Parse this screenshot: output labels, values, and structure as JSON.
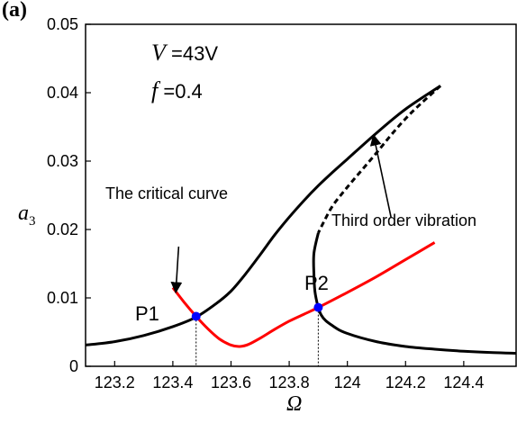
{
  "panel_label": "(a)",
  "params": {
    "v_symbol": "V",
    "v_value": "=43V",
    "f_symbol": "f",
    "f_value": "=0.4"
  },
  "chart_data": {
    "type": "line",
    "ylabel_base": "a",
    "ylabel_sub": "3",
    "xlabel": "Ω",
    "xlim": [
      123.1,
      124.58
    ],
    "ylim": [
      0,
      0.05
    ],
    "x_ticks": [
      {
        "value": 123.2,
        "label": "123.2"
      },
      {
        "value": 123.4,
        "label": "123.4"
      },
      {
        "value": 123.6,
        "label": "123.6"
      },
      {
        "value": 123.8,
        "label": "123.8"
      },
      {
        "value": 124.0,
        "label": "124"
      },
      {
        "value": 124.2,
        "label": "124.2"
      },
      {
        "value": 124.4,
        "label": "124.4"
      }
    ],
    "y_ticks": [
      {
        "value": 0,
        "label": "0"
      },
      {
        "value": 0.01,
        "label": "0.01"
      },
      {
        "value": 0.02,
        "label": "0.02"
      },
      {
        "value": 0.03,
        "label": "0.03"
      },
      {
        "value": 0.04,
        "label": "0.04"
      },
      {
        "value": 0.05,
        "label": "0.05"
      }
    ],
    "series": [
      {
        "style": "solid",
        "color": "#000000",
        "x": [
          123.1,
          123.2,
          123.3,
          123.4,
          123.48,
          123.55,
          123.6,
          123.65,
          123.7,
          123.75,
          123.8,
          123.85,
          123.9,
          123.95,
          124.0,
          124.1,
          124.2,
          124.32
        ],
        "y": [
          0.0031,
          0.0036,
          0.0045,
          0.0058,
          0.0072,
          0.0092,
          0.011,
          0.0135,
          0.0163,
          0.0192,
          0.0218,
          0.0242,
          0.0264,
          0.0284,
          0.0303,
          0.0341,
          0.0376,
          0.041
        ]
      },
      {
        "style": "dashed",
        "color": "#000000",
        "x": [
          124.32,
          124.25,
          124.2,
          124.15,
          124.1,
          124.05,
          124.0,
          123.95,
          123.92,
          123.9
        ],
        "y": [
          0.041,
          0.0383,
          0.0362,
          0.0338,
          0.0312,
          0.0287,
          0.0262,
          0.0235,
          0.0212,
          0.0195
        ]
      },
      {
        "style": "solid",
        "color": "#000000",
        "x": [
          123.9,
          123.885,
          123.885,
          123.89,
          123.91,
          123.95,
          124.0,
          124.1,
          124.2,
          124.3,
          124.4,
          124.5,
          124.58
        ],
        "y": [
          0.0195,
          0.0165,
          0.0135,
          0.0105,
          0.0075,
          0.0059,
          0.0048,
          0.0036,
          0.0029,
          0.0025,
          0.0022,
          0.002,
          0.0019
        ]
      },
      {
        "style": "solid",
        "color": "#ff0000",
        "x": [
          123.4,
          123.44,
          123.48,
          123.52,
          123.56,
          123.6,
          123.63,
          123.66,
          123.7,
          123.75,
          123.8,
          123.85,
          123.9,
          124.0,
          124.1,
          124.2,
          124.3
        ],
        "y": [
          0.0115,
          0.0093,
          0.0073,
          0.0055,
          0.004,
          0.0031,
          0.0029,
          0.0032,
          0.0041,
          0.0054,
          0.0066,
          0.0076,
          0.0086,
          0.0108,
          0.0131,
          0.0156,
          0.0181
        ]
      }
    ],
    "points": [
      {
        "label": "P1",
        "x": 123.48,
        "y": 0.0073,
        "color": "#0000ff"
      },
      {
        "label": "P2",
        "x": 123.9,
        "y": 0.0086,
        "color": "#0000ff"
      }
    ],
    "annotations": [
      {
        "text": "The critical curve",
        "tail": [
          123.42,
          0.0175
        ],
        "head": [
          123.41,
          0.0108
        ]
      },
      {
        "text": "Third order vibration",
        "tail": [
          124.15,
          0.0218
        ],
        "head": [
          124.09,
          0.0338
        ]
      }
    ]
  }
}
